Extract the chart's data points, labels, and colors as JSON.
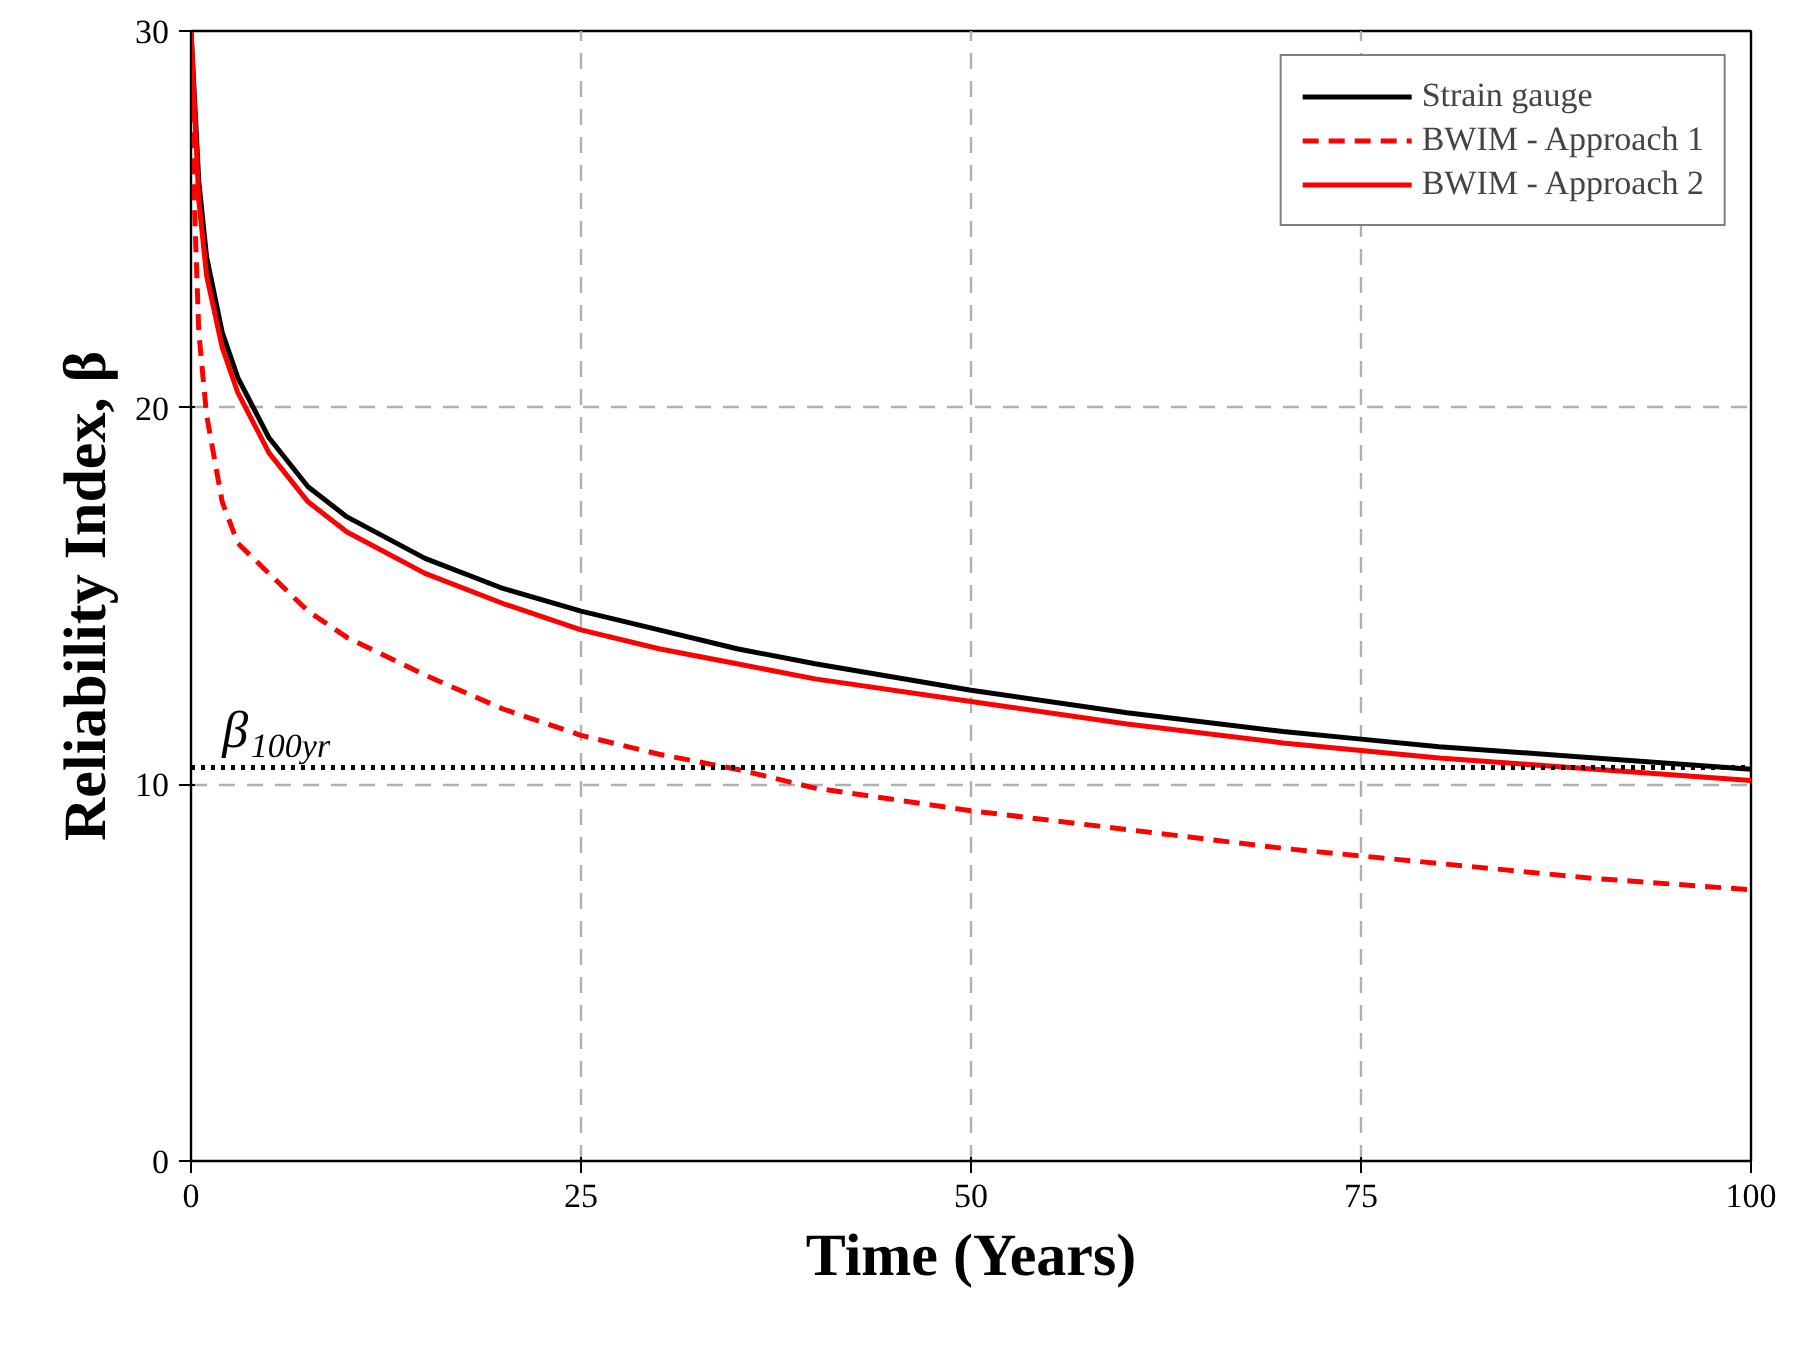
{
  "chart_data": {
    "type": "line",
    "xlabel": "Time (Years)",
    "ylabel": "Reliability Index, β",
    "xlim": [
      0,
      100
    ],
    "ylim": [
      0,
      30
    ],
    "xticks": [
      0,
      25,
      50,
      75,
      100
    ],
    "yticks": [
      0,
      10,
      20,
      30
    ],
    "grid": true,
    "legend": "top right",
    "x": [
      0,
      0.5,
      1,
      2,
      3,
      5,
      7.5,
      10,
      15,
      20,
      25,
      30,
      35,
      40,
      50,
      60,
      70,
      75,
      80,
      90,
      100
    ],
    "series": [
      {
        "name": "Strain gauge",
        "color": "#000000",
        "line_style": "solid",
        "values": [
          30,
          26,
          24,
          22,
          20.8,
          19.2,
          17.9,
          17.1,
          16.0,
          15.2,
          14.6,
          14.1,
          13.6,
          13.2,
          12.5,
          11.9,
          11.4,
          11.2,
          11.0,
          10.7,
          10.4
        ]
      },
      {
        "name": "BWIM - Approach 1",
        "color": "#ff0000",
        "line_style": "dashed",
        "values": [
          28,
          22,
          19.8,
          17.5,
          16.4,
          15.6,
          14.6,
          13.9,
          12.9,
          12.0,
          11.3,
          10.8,
          10.4,
          9.9,
          9.3,
          8.8,
          8.3,
          8.1,
          7.9,
          7.5,
          7.2
        ]
      },
      {
        "name": "BWIM - Approach 2",
        "color": "#ff0000",
        "line_style": "solid",
        "values": [
          30,
          25.5,
          23.5,
          21.6,
          20.4,
          18.8,
          17.5,
          16.7,
          15.6,
          14.8,
          14.1,
          13.6,
          13.2,
          12.8,
          12.2,
          11.6,
          11.1,
          10.9,
          10.7,
          10.4,
          10.1
        ]
      }
    ],
    "ref_lines": [
      {
        "axis": "y",
        "value": 10.45,
        "label": "β$_{100yr}$",
        "color": "#000000",
        "line_style": "dotted"
      }
    ]
  }
}
